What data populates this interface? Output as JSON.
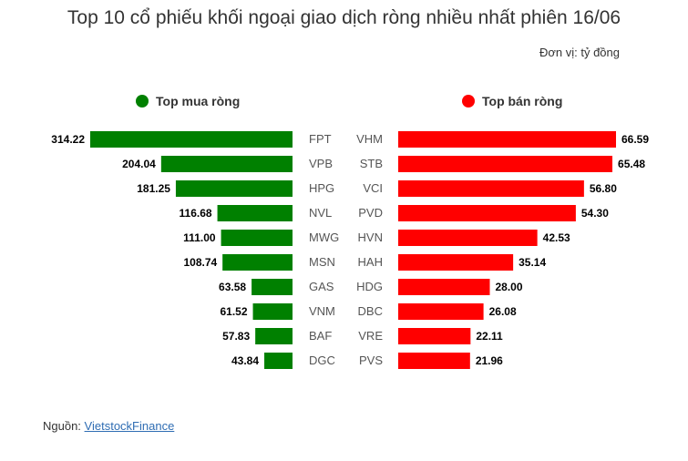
{
  "title": "Top 10 cổ phiếu khối ngoại giao dịch ròng nhiều nhất phiên 16/06",
  "unit": "Đơn vị: tỷ đồng",
  "source": {
    "prefix": "Nguồn: ",
    "link_text": "VietstockFinance"
  },
  "colors": {
    "buy": "#008000",
    "sell": "#ff0000"
  },
  "chart_data": [
    {
      "type": "bar",
      "orientation": "horizontal",
      "legend": "Top mua ròng",
      "legend_placement": "top",
      "categories": [
        "FPT",
        "VPB",
        "HPG",
        "NVL",
        "MWG",
        "MSN",
        "GAS",
        "VNM",
        "BAF",
        "DGC"
      ],
      "values": [
        314.22,
        204.04,
        181.25,
        116.68,
        111.0,
        108.74,
        63.58,
        61.52,
        57.83,
        43.84
      ],
      "labels": [
        "314.22",
        "204.04",
        "181.25",
        "116.68",
        "111.00",
        "108.74",
        "63.58",
        "61.52",
        "57.83",
        "43.84"
      ],
      "direction": "right-to-left",
      "grid": false
    },
    {
      "type": "bar",
      "orientation": "horizontal",
      "legend": "Top bán ròng",
      "legend_placement": "top",
      "categories": [
        "VHM",
        "STB",
        "VCI",
        "PVD",
        "HVN",
        "HAH",
        "HDG",
        "DBC",
        "VRE",
        "PVS"
      ],
      "values": [
        66.59,
        65.48,
        56.8,
        54.3,
        42.53,
        35.14,
        28.0,
        26.08,
        22.11,
        21.96
      ],
      "labels": [
        "66.59",
        "65.48",
        "56.80",
        "54.30",
        "42.53",
        "35.14",
        "28.00",
        "26.08",
        "22.11",
        "21.96"
      ],
      "direction": "left-to-right",
      "grid": false
    }
  ]
}
